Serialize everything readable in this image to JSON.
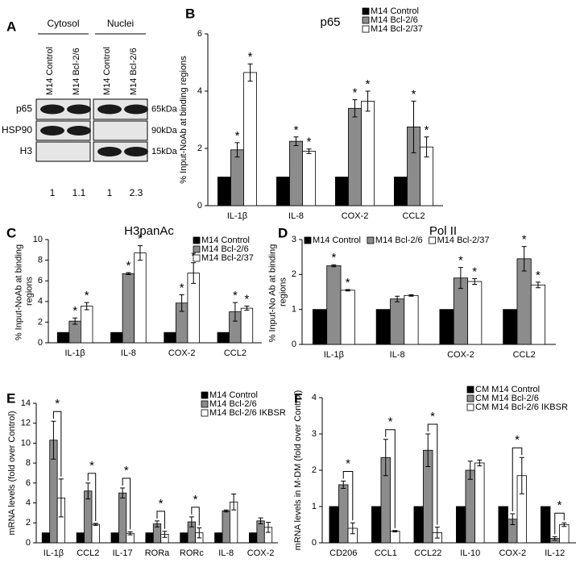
{
  "blot": {
    "panel": "A",
    "groups": [
      "Cytosol",
      "Nuclei"
    ],
    "lanes": [
      "M14 Control",
      "M14 Bcl-2/6",
      "M14 Control",
      "M14 Bcl-2/6"
    ],
    "rows": [
      {
        "protein": "p65",
        "size": "65kDa"
      },
      {
        "protein": "HSP90",
        "size": "90kDa"
      },
      {
        "protein": "H3",
        "size": "15kDa"
      }
    ],
    "quantification": [
      1,
      1.1,
      1,
      2.3
    ]
  },
  "chart_data": [
    {
      "type": "bar",
      "panel": "B",
      "title": "p65",
      "ylabel": "% Input-NoAb at binding regions",
      "categories": [
        "IL-1β",
        "IL-8",
        "COX-2",
        "CCL2"
      ],
      "series": [
        {
          "name": "M14 Control",
          "color": "#000000",
          "values": [
            1,
            1,
            1,
            1
          ]
        },
        {
          "name": "M14 Bcl-2/6",
          "color": "#8c8c8c",
          "values": [
            1.95,
            2.25,
            3.4,
            2.75
          ],
          "errors": [
            0.25,
            0.15,
            0.3,
            0.9
          ],
          "marks": [
            "*",
            "*",
            "*",
            "*"
          ]
        },
        {
          "name": "M14 Bcl-2/37",
          "color": "#ffffff",
          "values": [
            4.65,
            1.9,
            3.65,
            2.05
          ],
          "errors": [
            0.3,
            0.08,
            0.35,
            0.35
          ],
          "marks": [
            "*",
            "*",
            "*",
            "*"
          ]
        }
      ],
      "ylim": [
        0,
        6
      ],
      "yticks": [
        0,
        2,
        4,
        6
      ],
      "legend": "upper right"
    },
    {
      "type": "bar",
      "panel": "C",
      "title": "H3panAc",
      "ylabel": "% Input-NoAb at binding regions",
      "categories": [
        "IL-1β",
        "IL-8",
        "COX-2",
        "CCL2"
      ],
      "series": [
        {
          "name": "M14 Control",
          "color": "#000000",
          "values": [
            1,
            1,
            1,
            1
          ]
        },
        {
          "name": "M14 Bcl-2/6",
          "color": "#8c8c8c",
          "values": [
            2.1,
            6.7,
            3.85,
            3.0
          ],
          "errors": [
            0.3,
            0.1,
            0.8,
            0.9
          ],
          "marks": [
            "*",
            "*",
            "*",
            "*"
          ]
        },
        {
          "name": "M14 Bcl-2/37",
          "color": "#ffffff",
          "values": [
            3.55,
            8.7,
            6.75,
            3.35
          ],
          "errors": [
            0.35,
            0.7,
            1.0,
            0.2
          ],
          "marks": [
            "*",
            "*",
            "*",
            "*"
          ]
        }
      ],
      "ylim": [
        0,
        10
      ],
      "yticks": [
        0,
        2,
        4,
        6,
        8,
        10
      ],
      "legend": "upper right"
    },
    {
      "type": "bar",
      "panel": "D",
      "title": "Pol II",
      "ylabel": "% Input-No Ab at binding regions",
      "categories": [
        "IL-1β",
        "IL-8",
        "COX-2",
        "CCL2"
      ],
      "series": [
        {
          "name": "M14 Control",
          "color": "#000000",
          "values": [
            1,
            1,
            1,
            1
          ]
        },
        {
          "name": "M14 Bcl-2/6",
          "color": "#8c8c8c",
          "values": [
            2.25,
            1.3,
            1.9,
            2.45
          ],
          "errors": [
            0.03,
            0.08,
            0.3,
            0.35
          ],
          "marks": [
            "*",
            null,
            "*",
            "*"
          ]
        },
        {
          "name": "M14 Bcl-2/37",
          "color": "#ffffff",
          "values": [
            1.55,
            1.4,
            1.8,
            1.7
          ],
          "errors": [
            0.02,
            0.02,
            0.08,
            0.08
          ],
          "marks": [
            "*",
            null,
            "*",
            "*"
          ]
        }
      ],
      "ylim": [
        0,
        3
      ],
      "yticks": [
        0,
        1,
        2,
        3
      ],
      "legend": "top"
    },
    {
      "type": "bar",
      "panel": "E",
      "ylabel": "mRNA levels (fold over Control)",
      "categories": [
        "IL-1β",
        "CCL2",
        "IL-17",
        "RORa",
        "RORc",
        "IL-8",
        "COX-2"
      ],
      "series": [
        {
          "name": "M14 Control",
          "color": "#000000",
          "values": [
            1,
            1,
            1,
            1,
            1,
            1,
            1
          ]
        },
        {
          "name": "M14 Bcl-2/6",
          "color": "#8c8c8c",
          "values": [
            10.3,
            5.2,
            5.0,
            1.9,
            2.1,
            3.2,
            2.2
          ],
          "errors": [
            1.9,
            0.8,
            0.5,
            0.3,
            0.5,
            0.1,
            0.3
          ]
        },
        {
          "name": "M14 Bcl-2/6 IKBSR",
          "color": "#ffffff",
          "values": [
            4.5,
            1.85,
            0.95,
            0.85,
            1.0,
            4.1,
            1.55
          ],
          "errors": [
            1.9,
            0.1,
            0.15,
            0.3,
            0.5,
            0.8,
            0.5
          ]
        }
      ],
      "comparisons": [
        "*",
        "*",
        "*",
        "*",
        "*",
        null,
        null
      ],
      "ylim": [
        0,
        14
      ],
      "yticks": [
        0,
        2,
        4,
        6,
        8,
        10,
        12,
        14
      ],
      "legend": "upper right"
    },
    {
      "type": "bar",
      "panel": "F",
      "ylabel": "mRNA levels in M-DM (fold over Control)",
      "categories": [
        "CD206",
        "CCL1",
        "CCL22",
        "IL-10",
        "COX-2",
        "IL-12"
      ],
      "series": [
        {
          "name": "CM M14 Control",
          "color": "#000000",
          "values": [
            1,
            1,
            1,
            1,
            1,
            1
          ]
        },
        {
          "name": "CM M14 Bcl-2/6",
          "color": "#8c8c8c",
          "values": [
            1.6,
            2.35,
            2.55,
            2.0,
            0.65,
            0.12
          ],
          "errors": [
            0.1,
            0.5,
            0.45,
            0.25,
            0.15,
            0.05
          ]
        },
        {
          "name": "CM M14 Bcl-2/6 IKBSR",
          "color": "#ffffff",
          "values": [
            0.4,
            0.32,
            0.28,
            2.2,
            1.85,
            0.5
          ],
          "errors": [
            0.15,
            0.02,
            0.15,
            0.08,
            0.5,
            0.05
          ]
        }
      ],
      "comparisons": [
        "*",
        "*",
        "*",
        null,
        "*",
        "*"
      ],
      "ylim": [
        0,
        4
      ],
      "yticks": [
        0,
        1,
        2,
        3,
        4
      ],
      "legend": "upper right"
    }
  ]
}
